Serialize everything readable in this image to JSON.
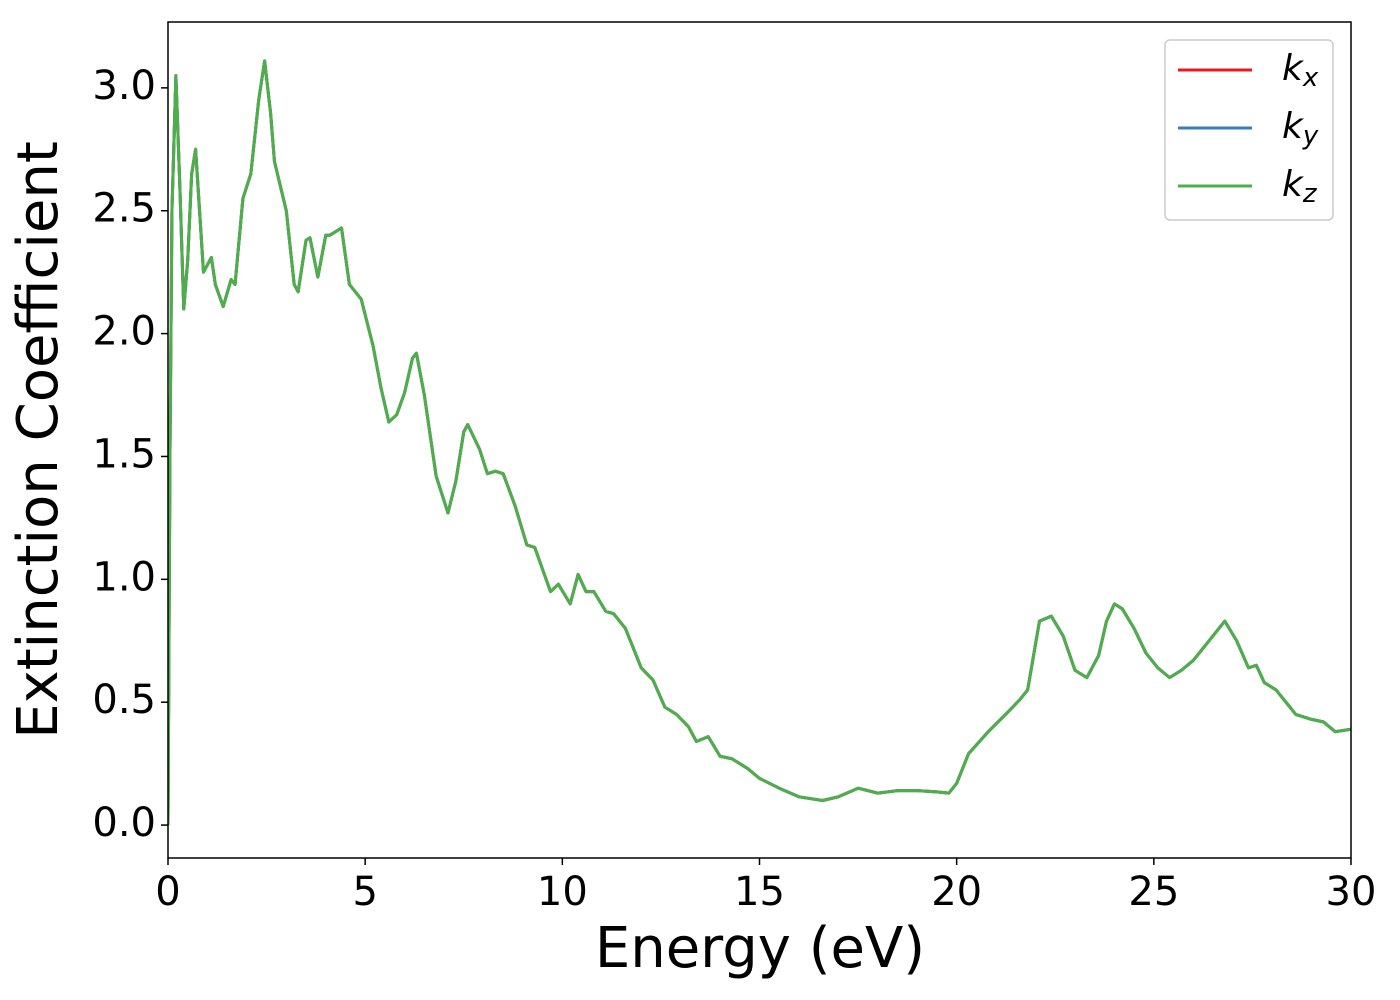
{
  "chart_data": {
    "type": "line",
    "xlabel": "Energy (eV)",
    "ylabel": "Extinction Coefficient",
    "x": [
      0,
      0.05,
      0.1,
      0.2,
      0.3,
      0.4,
      0.5,
      0.6,
      0.7,
      0.8,
      0.9,
      1.0,
      1.1,
      1.2,
      1.4,
      1.6,
      1.7,
      1.9,
      2.1,
      2.3,
      2.45,
      2.6,
      2.7,
      3.0,
      3.2,
      3.3,
      3.5,
      3.6,
      3.8,
      4.0,
      4.1,
      4.2,
      4.4,
      4.6,
      4.9,
      5.2,
      5.4,
      5.6,
      5.8,
      6.0,
      6.2,
      6.3,
      6.5,
      6.8,
      7.1,
      7.3,
      7.5,
      7.6,
      7.9,
      8.1,
      8.3,
      8.5,
      8.8,
      9.1,
      9.3,
      9.7,
      9.9,
      10.2,
      10.4,
      10.6,
      10.8,
      11.1,
      11.3,
      11.6,
      12.0,
      12.3,
      12.6,
      12.9,
      13.2,
      13.4,
      13.7,
      14.0,
      14.3,
      14.7,
      15.0,
      15.5,
      16.0,
      16.6,
      17.0,
      17.5,
      18.0,
      18.5,
      19.0,
      19.5,
      19.8,
      20.0,
      20.3,
      20.8,
      21.3,
      21.6,
      21.8,
      22.1,
      22.4,
      22.7,
      23.0,
      23.3,
      23.6,
      23.8,
      24.0,
      24.2,
      24.5,
      24.8,
      25.1,
      25.4,
      25.7,
      26.0,
      26.4,
      26.8,
      27.1,
      27.4,
      27.6,
      27.8,
      28.1,
      28.6,
      29.0,
      29.3,
      29.6,
      30.0
    ],
    "series": [
      {
        "name": "kx",
        "color": "#e41a1c",
        "values": [
          0,
          1.5,
          2.5,
          3.05,
          2.6,
          2.1,
          2.3,
          2.65,
          2.75,
          2.5,
          2.25,
          2.28,
          2.31,
          2.2,
          2.11,
          2.22,
          2.2,
          2.55,
          2.65,
          2.95,
          3.11,
          2.9,
          2.7,
          2.5,
          2.2,
          2.17,
          2.38,
          2.39,
          2.23,
          2.4,
          2.4,
          2.41,
          2.43,
          2.2,
          2.14,
          1.95,
          1.78,
          1.64,
          1.67,
          1.76,
          1.9,
          1.92,
          1.75,
          1.42,
          1.27,
          1.4,
          1.6,
          1.63,
          1.53,
          1.43,
          1.44,
          1.43,
          1.3,
          1.14,
          1.13,
          0.95,
          0.98,
          0.9,
          1.02,
          0.95,
          0.95,
          0.87,
          0.86,
          0.8,
          0.64,
          0.59,
          0.48,
          0.45,
          0.4,
          0.34,
          0.36,
          0.28,
          0.27,
          0.23,
          0.19,
          0.15,
          0.115,
          0.1,
          0.115,
          0.15,
          0.13,
          0.14,
          0.14,
          0.135,
          0.13,
          0.17,
          0.29,
          0.38,
          0.46,
          0.51,
          0.55,
          0.83,
          0.85,
          0.77,
          0.63,
          0.6,
          0.69,
          0.83,
          0.9,
          0.88,
          0.8,
          0.7,
          0.64,
          0.6,
          0.63,
          0.67,
          0.75,
          0.83,
          0.75,
          0.64,
          0.65,
          0.58,
          0.55,
          0.45,
          0.43,
          0.42,
          0.38,
          0.39
        ]
      },
      {
        "name": "ky",
        "color": "#377eb8",
        "values": [
          0,
          1.5,
          2.5,
          3.05,
          2.6,
          2.1,
          2.3,
          2.65,
          2.75,
          2.5,
          2.25,
          2.28,
          2.31,
          2.2,
          2.11,
          2.22,
          2.2,
          2.55,
          2.65,
          2.95,
          3.11,
          2.9,
          2.7,
          2.5,
          2.2,
          2.17,
          2.38,
          2.39,
          2.23,
          2.4,
          2.4,
          2.41,
          2.43,
          2.2,
          2.14,
          1.95,
          1.78,
          1.64,
          1.67,
          1.76,
          1.9,
          1.92,
          1.75,
          1.42,
          1.27,
          1.4,
          1.6,
          1.63,
          1.53,
          1.43,
          1.44,
          1.43,
          1.3,
          1.14,
          1.13,
          0.95,
          0.98,
          0.9,
          1.02,
          0.95,
          0.95,
          0.87,
          0.86,
          0.8,
          0.64,
          0.59,
          0.48,
          0.45,
          0.4,
          0.34,
          0.36,
          0.28,
          0.27,
          0.23,
          0.19,
          0.15,
          0.115,
          0.1,
          0.115,
          0.15,
          0.13,
          0.14,
          0.14,
          0.135,
          0.13,
          0.17,
          0.29,
          0.38,
          0.46,
          0.51,
          0.55,
          0.83,
          0.85,
          0.77,
          0.63,
          0.6,
          0.69,
          0.83,
          0.9,
          0.88,
          0.8,
          0.7,
          0.64,
          0.6,
          0.63,
          0.67,
          0.75,
          0.83,
          0.75,
          0.64,
          0.65,
          0.58,
          0.55,
          0.45,
          0.43,
          0.42,
          0.38,
          0.39
        ]
      },
      {
        "name": "kz",
        "color": "#4daf4a",
        "values": [
          0,
          1.5,
          2.5,
          3.05,
          2.6,
          2.1,
          2.3,
          2.65,
          2.75,
          2.5,
          2.25,
          2.28,
          2.31,
          2.2,
          2.11,
          2.22,
          2.2,
          2.55,
          2.65,
          2.95,
          3.11,
          2.9,
          2.7,
          2.5,
          2.2,
          2.17,
          2.38,
          2.39,
          2.23,
          2.4,
          2.4,
          2.41,
          2.43,
          2.2,
          2.14,
          1.95,
          1.78,
          1.64,
          1.67,
          1.76,
          1.9,
          1.92,
          1.75,
          1.42,
          1.27,
          1.4,
          1.6,
          1.63,
          1.53,
          1.43,
          1.44,
          1.43,
          1.3,
          1.14,
          1.13,
          0.95,
          0.98,
          0.9,
          1.02,
          0.95,
          0.95,
          0.87,
          0.86,
          0.8,
          0.64,
          0.59,
          0.48,
          0.45,
          0.4,
          0.34,
          0.36,
          0.28,
          0.27,
          0.23,
          0.19,
          0.15,
          0.115,
          0.1,
          0.115,
          0.15,
          0.13,
          0.14,
          0.14,
          0.135,
          0.13,
          0.17,
          0.29,
          0.38,
          0.46,
          0.51,
          0.55,
          0.83,
          0.85,
          0.77,
          0.63,
          0.6,
          0.69,
          0.83,
          0.9,
          0.88,
          0.8,
          0.7,
          0.64,
          0.6,
          0.63,
          0.67,
          0.75,
          0.83,
          0.75,
          0.64,
          0.65,
          0.58,
          0.55,
          0.45,
          0.43,
          0.42,
          0.38,
          0.39
        ]
      }
    ],
    "xlim": [
      0,
      30
    ],
    "xticks": [
      0,
      5,
      10,
      15,
      20,
      25,
      30
    ],
    "ylim": [
      -0.134,
      3.268
    ],
    "yticks": [
      {
        "value": 0,
        "label": "0.0"
      },
      0.5,
      {
        "value": 1,
        "label": "1.0"
      },
      1.5,
      {
        "value": 2,
        "label": "2.0"
      },
      2.5,
      {
        "value": 3,
        "label": "3.0"
      }
    ],
    "grid": false,
    "legend": "upper right"
  }
}
